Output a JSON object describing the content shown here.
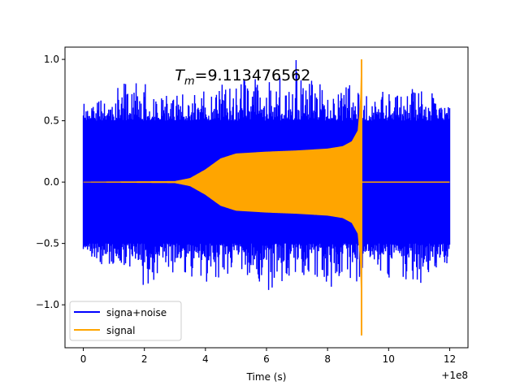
{
  "chart_data": {
    "type": "line",
    "title": "",
    "xlabel": "Time (s)",
    "ylabel": "",
    "x_offset_text": "+1e8",
    "xlim": [
      -0.6,
      12.6
    ],
    "ylim": [
      -1.35,
      1.1
    ],
    "x_ticks": [
      0,
      2,
      4,
      6,
      8,
      10,
      12
    ],
    "x_tick_labels": [
      "0",
      "2",
      "4",
      "6",
      "8",
      "10",
      "12"
    ],
    "y_ticks": [
      -1.0,
      -0.5,
      0.0,
      0.5,
      1.0
    ],
    "y_tick_labels": [
      "−1.0",
      "−0.5",
      "0.0",
      "0.5",
      "1.0"
    ],
    "grid": false,
    "legend_position": "lower-left",
    "annotation": {
      "text_italic": "T",
      "text_sub": "m",
      "text_rest": "=9.113476562",
      "x": 3.0,
      "y": 0.83
    },
    "series": [
      {
        "name": "signa+noise",
        "color": "#0000ff",
        "envelope_x": [
          0,
          0.5,
          1,
          1.5,
          2,
          2.5,
          3,
          3.5,
          4,
          4.5,
          5,
          5.5,
          6,
          6.5,
          7,
          7.5,
          8,
          8.5,
          9,
          9.1,
          9.2,
          9.5,
          10,
          10.5,
          11,
          11.5,
          12
        ],
        "envelope_upper": [
          0.72,
          0.75,
          0.74,
          0.85,
          0.84,
          0.75,
          0.78,
          0.75,
          0.75,
          0.82,
          0.85,
          0.92,
          0.85,
          0.95,
          1.0,
          0.84,
          0.8,
          0.8,
          0.88,
          0.78,
          0.7,
          0.72,
          0.78,
          0.72,
          0.85,
          0.75,
          0.68
        ],
        "envelope_lower": [
          -0.6,
          -0.72,
          -0.75,
          -0.8,
          -0.92,
          -0.78,
          -0.75,
          -0.85,
          -0.82,
          -0.85,
          -0.8,
          -0.78,
          -0.9,
          -0.85,
          -0.8,
          -0.8,
          -0.9,
          -0.8,
          -0.92,
          -0.88,
          -0.7,
          -0.75,
          -0.8,
          -0.82,
          -0.88,
          -0.75,
          -0.72
        ],
        "dense_upper": 0.5,
        "dense_lower": -0.5
      },
      {
        "name": "signal",
        "color": "#ffa500",
        "amplitude_x": [
          0,
          3.0,
          3.5,
          4.0,
          4.5,
          5.0,
          6.0,
          7.0,
          8.0,
          8.5,
          8.8,
          9.0,
          9.08,
          9.113
        ],
        "amplitude": [
          0.0,
          0.005,
          0.03,
          0.1,
          0.19,
          0.23,
          0.245,
          0.255,
          0.27,
          0.29,
          0.33,
          0.42,
          0.65,
          1.0
        ],
        "amplitude_negative_peak": -1.25,
        "merger_time": 9.113,
        "end": 12
      }
    ]
  }
}
